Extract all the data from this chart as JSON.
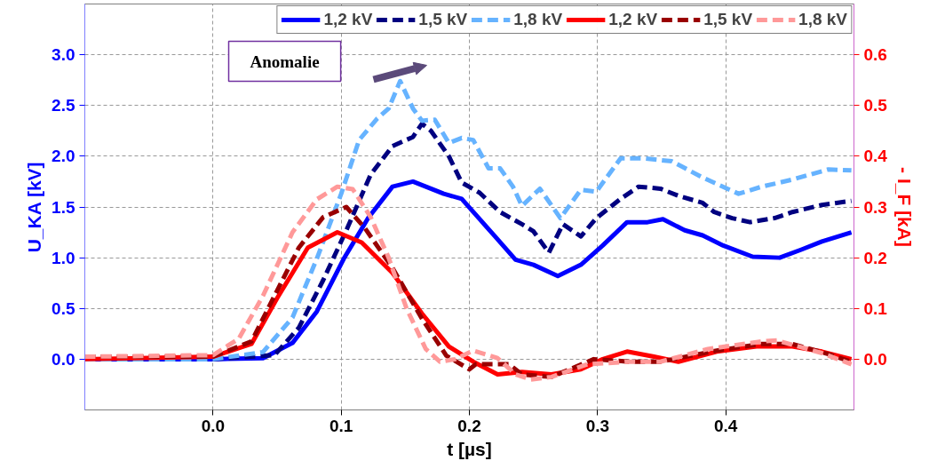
{
  "chart_data": {
    "type": "line",
    "xlabel": "t [µs]",
    "ylabel": "U_KA [kV]",
    "y2label": "- I_F [kA]",
    "xlim": [
      -0.1,
      0.5
    ],
    "ylim": [
      -0.5,
      3.5
    ],
    "y2lim": [
      -0.1,
      0.7
    ],
    "xticks": [
      {
        "value": 0,
        "label": "0.0"
      },
      {
        "value": 0.1,
        "label": "0.1"
      },
      {
        "value": 0.2,
        "label": "0.2"
      },
      {
        "value": 0.3,
        "label": "0.3"
      },
      {
        "value": 0.4,
        "label": "0.4"
      }
    ],
    "yticks": [
      {
        "value": 0,
        "label": "0.0"
      },
      {
        "value": 0.5,
        "label": "0.5"
      },
      {
        "value": 1,
        "label": "1.0"
      },
      {
        "value": 1.5,
        "label": "1.5"
      },
      {
        "value": 2,
        "label": "2.0"
      },
      {
        "value": 2.5,
        "label": "2.5"
      },
      {
        "value": 3,
        "label": "3.0"
      }
    ],
    "y2ticks": [
      {
        "value": 0,
        "label": "0.0"
      },
      0.1,
      0.2,
      0.3,
      0.4,
      0.5,
      0.6
    ],
    "grid": true,
    "legend": "top right",
    "marker": "none",
    "annotations": [
      "Anomalie"
    ],
    "series": [
      {
        "name": "1,2 kV",
        "color": "#0000ff",
        "line_style": "solid",
        "x": [
          -0.1,
          0.0,
          0.039,
          0.062,
          0.081,
          0.102,
          0.121,
          0.14,
          0.156,
          0.18,
          0.194,
          0.208,
          0.22,
          0.236,
          0.25,
          0.269,
          0.287,
          0.304,
          0.323,
          0.339,
          0.351,
          0.368,
          0.382,
          0.398,
          0.421,
          0.442,
          0.459,
          0.475,
          0.498
        ],
        "values": [
          0,
          0,
          0.01,
          0.16,
          0.47,
          0.99,
          1.39,
          1.7,
          1.75,
          1.63,
          1.58,
          1.38,
          1.21,
          0.98,
          0.93,
          0.82,
          0.93,
          1.12,
          1.35,
          1.35,
          1.38,
          1.27,
          1.22,
          1.12,
          1.01,
          1.0,
          1.08,
          1.16,
          1.25
        ]
      },
      {
        "name": "1,5 kV",
        "color": "#000080",
        "line_style": "dashed",
        "x": [
          -0.1,
          0.0,
          0.048,
          0.067,
          0.086,
          0.104,
          0.123,
          0.14,
          0.156,
          0.163,
          0.17,
          0.184,
          0.194,
          0.208,
          0.224,
          0.241,
          0.25,
          0.262,
          0.273,
          0.287,
          0.299,
          0.318,
          0.332,
          0.349,
          0.363,
          0.382,
          0.391,
          0.405,
          0.419,
          0.438,
          0.452,
          0.475,
          0.498
        ],
        "values": [
          0,
          0,
          0.04,
          0.31,
          0.78,
          1.27,
          1.82,
          2.1,
          2.19,
          2.32,
          2.25,
          2.0,
          1.74,
          1.64,
          1.45,
          1.33,
          1.26,
          1.05,
          1.33,
          1.21,
          1.39,
          1.58,
          1.7,
          1.68,
          1.61,
          1.54,
          1.45,
          1.39,
          1.35,
          1.39,
          1.45,
          1.52,
          1.56
        ]
      },
      {
        "name": "1,8 kV",
        "color": "#66b3ff",
        "line_style": "dashed",
        "x": [
          -0.1,
          0.0,
          0.039,
          0.062,
          0.081,
          0.1,
          0.114,
          0.128,
          0.137,
          0.146,
          0.156,
          0.163,
          0.173,
          0.184,
          0.194,
          0.203,
          0.215,
          0.224,
          0.234,
          0.241,
          0.255,
          0.271,
          0.287,
          0.299,
          0.318,
          0.335,
          0.358,
          0.382,
          0.41,
          0.428,
          0.452,
          0.48,
          0.498
        ],
        "values": [
          0,
          0,
          0.07,
          0.41,
          0.99,
          1.63,
          2.16,
          2.37,
          2.47,
          2.74,
          2.47,
          2.35,
          2.36,
          2.13,
          2.18,
          2.16,
          1.88,
          1.88,
          1.7,
          1.51,
          1.68,
          1.39,
          1.67,
          1.65,
          1.98,
          1.98,
          1.95,
          1.79,
          1.63,
          1.7,
          1.77,
          1.87,
          1.86
        ]
      },
      {
        "name": "1,2 kV",
        "color": "#ff0000",
        "line_style": "solid",
        "axis": "y2",
        "x": [
          -0.1,
          0.0,
          0.03,
          0.05,
          0.074,
          0.097,
          0.116,
          0.14,
          0.163,
          0.184,
          0.203,
          0.222,
          0.241,
          0.264,
          0.287,
          0.304,
          0.323,
          0.344,
          0.363,
          0.393,
          0.424,
          0.452,
          0.475,
          0.498
        ],
        "values": [
          0.0,
          0.005,
          0.03,
          0.12,
          0.22,
          0.25,
          0.23,
          0.17,
          0.09,
          0.025,
          -0.005,
          -0.03,
          -0.025,
          -0.03,
          -0.02,
          0.0,
          0.015,
          0.005,
          -0.005,
          0.015,
          0.025,
          0.025,
          0.015,
          0.0
        ]
      },
      {
        "name": "1,5 kV",
        "color": "#990000",
        "line_style": "dashed",
        "axis": "y2",
        "x": [
          -0.1,
          0.0,
          0.03,
          0.048,
          0.067,
          0.086,
          0.104,
          0.118,
          0.14,
          0.163,
          0.182,
          0.2,
          0.205,
          0.231,
          0.241,
          0.264,
          0.297,
          0.325,
          0.349,
          0.393,
          0.428,
          0.452,
          0.48,
          0.498
        ],
        "values": [
          0.005,
          0.005,
          0.035,
          0.125,
          0.22,
          0.28,
          0.3,
          0.26,
          0.18,
          0.08,
          0.007,
          -0.02,
          -0.01,
          -0.01,
          -0.03,
          -0.035,
          0.0,
          -0.005,
          -0.005,
          0.017,
          0.03,
          0.03,
          0.01,
          -0.005
        ]
      },
      {
        "name": "1,8 kV",
        "color": "#ff9999",
        "line_style": "dashed",
        "axis": "y2",
        "x": [
          -0.1,
          0.0,
          0.02,
          0.039,
          0.062,
          0.081,
          0.097,
          0.109,
          0.123,
          0.137,
          0.151,
          0.166,
          0.177,
          0.189,
          0.203,
          0.222,
          0.236,
          0.248,
          0.264,
          0.292,
          0.325,
          0.349,
          0.386,
          0.428,
          0.44,
          0.475,
          0.498
        ],
        "values": [
          0.005,
          0.008,
          0.04,
          0.125,
          0.25,
          0.315,
          0.34,
          0.335,
          0.28,
          0.2,
          0.1,
          0.02,
          -0.005,
          0.0,
          0.017,
          0.002,
          -0.03,
          -0.04,
          -0.035,
          -0.01,
          -0.005,
          -0.005,
          0.02,
          0.035,
          0.037,
          0.012,
          -0.01
        ]
      }
    ]
  }
}
